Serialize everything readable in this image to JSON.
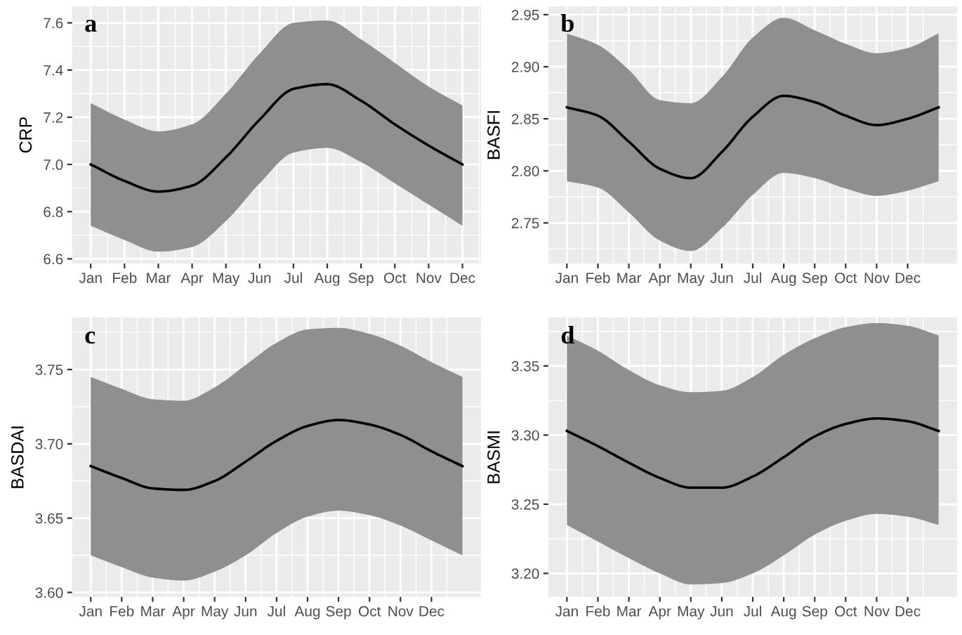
{
  "chart_data": [
    {
      "type": "line",
      "ylabel": "CRP",
      "annotations": [
        "a"
      ],
      "grid": true,
      "marker": "none",
      "line_style": "solid",
      "categories": [
        "Jan",
        "Feb",
        "Mar",
        "Apr",
        "May",
        "Jun",
        "Jul",
        "Aug",
        "Sep",
        "Oct",
        "Nov",
        "Dec"
      ],
      "ylim": [
        6.58,
        7.67
      ],
      "yticks": [
        {
          "value": 6.6,
          "label": "6.6"
        },
        {
          "value": 6.8,
          "label": "6.8"
        },
        {
          "value": 7.0,
          "label": "7.0"
        },
        {
          "value": 7.2,
          "label": "7.2"
        },
        {
          "value": 7.4,
          "label": "7.4"
        },
        {
          "value": 7.6,
          "label": "7.6"
        }
      ],
      "series": [
        {
          "color": "#000000",
          "values": [
            7.0,
            6.93,
            6.885,
            6.91,
            7.03,
            7.19,
            7.32,
            7.34,
            7.27,
            7.17,
            7.08,
            7.0
          ],
          "upper": [
            7.26,
            7.19,
            7.14,
            7.17,
            7.3,
            7.47,
            7.6,
            7.61,
            7.53,
            7.43,
            7.33,
            7.25
          ],
          "lower": [
            6.74,
            6.68,
            6.63,
            6.65,
            6.76,
            6.92,
            7.05,
            7.07,
            7.01,
            6.92,
            6.83,
            6.74
          ]
        }
      ]
    },
    {
      "type": "line",
      "ylabel": "BASFI",
      "annotations": [
        "b"
      ],
      "grid": true,
      "marker": "none",
      "line_style": "solid",
      "categories": [
        "Jan",
        "Feb",
        "Mar",
        "Apr",
        "May",
        "Jun",
        "Jul",
        "Aug",
        "Sep",
        "Oct",
        "Nov",
        "Dec",
        null
      ],
      "ylim": [
        2.711,
        2.958
      ],
      "yticks": [
        {
          "value": 2.75,
          "label": "2.75"
        },
        {
          "value": 2.8,
          "label": "2.80"
        },
        {
          "value": 2.85,
          "label": "2.85"
        },
        {
          "value": 2.9,
          "label": "2.90"
        },
        {
          "value": 2.95,
          "label": "2.95"
        }
      ],
      "series": [
        {
          "color": "#000000",
          "values": [
            2.861,
            2.853,
            2.828,
            2.802,
            2.793,
            2.818,
            2.852,
            2.872,
            2.866,
            2.853,
            2.844,
            2.85,
            2.861
          ],
          "upper": [
            2.932,
            2.921,
            2.897,
            2.868,
            2.865,
            2.89,
            2.928,
            2.947,
            2.935,
            2.922,
            2.913,
            2.918,
            2.932
          ],
          "lower": [
            2.79,
            2.784,
            2.76,
            2.733,
            2.723,
            2.745,
            2.777,
            2.798,
            2.793,
            2.783,
            2.776,
            2.781,
            2.79
          ]
        }
      ]
    },
    {
      "type": "line",
      "ylabel": "BASDAI",
      "annotations": [
        "c"
      ],
      "grid": true,
      "marker": "none",
      "line_style": "solid",
      "categories": [
        "Jan",
        "Feb",
        "Mar",
        "Apr",
        "May",
        "Jun",
        "Jul",
        "Aug",
        "Sep",
        "Oct",
        "Nov",
        "Dec",
        null
      ],
      "ylim": [
        3.597,
        3.785
      ],
      "yticks": [
        {
          "value": 3.6,
          "label": "3.60"
        },
        {
          "value": 3.65,
          "label": "3.65"
        },
        {
          "value": 3.7,
          "label": "3.70"
        },
        {
          "value": 3.75,
          "label": "3.75"
        }
      ],
      "series": [
        {
          "color": "#000000",
          "values": [
            3.685,
            3.677,
            3.67,
            3.669,
            3.675,
            3.688,
            3.702,
            3.712,
            3.716,
            3.713,
            3.706,
            3.695,
            3.685
          ],
          "upper": [
            3.745,
            3.737,
            3.73,
            3.729,
            3.738,
            3.753,
            3.768,
            3.777,
            3.778,
            3.774,
            3.766,
            3.755,
            3.745
          ],
          "lower": [
            3.625,
            3.617,
            3.61,
            3.608,
            3.614,
            3.625,
            3.64,
            3.651,
            3.655,
            3.652,
            3.645,
            3.635,
            3.625
          ]
        }
      ]
    },
    {
      "type": "line",
      "ylabel": "BASMI",
      "annotations": [
        "d"
      ],
      "grid": true,
      "marker": "none",
      "line_style": "solid",
      "categories": [
        "Jan",
        "Feb",
        "Mar",
        "Apr",
        "May",
        "Jun",
        "Jul",
        "Aug",
        "Sep",
        "Oct",
        "Nov",
        "Dec",
        null
      ],
      "ylim": [
        3.183,
        3.385
      ],
      "yticks": [
        {
          "value": 3.2,
          "label": "3.20"
        },
        {
          "value": 3.25,
          "label": "3.25"
        },
        {
          "value": 3.3,
          "label": "3.30"
        },
        {
          "value": 3.35,
          "label": "3.35"
        }
      ],
      "series": [
        {
          "color": "#000000",
          "values": [
            3.303,
            3.292,
            3.28,
            3.269,
            3.262,
            3.262,
            3.27,
            3.284,
            3.299,
            3.308,
            3.312,
            3.31,
            3.303
          ],
          "upper": [
            3.372,
            3.361,
            3.347,
            3.336,
            3.331,
            3.332,
            3.342,
            3.358,
            3.37,
            3.378,
            3.381,
            3.379,
            3.372
          ],
          "lower": [
            3.235,
            3.223,
            3.211,
            3.2,
            3.192,
            3.193,
            3.2,
            3.213,
            3.228,
            3.238,
            3.243,
            3.241,
            3.235
          ]
        }
      ]
    }
  ]
}
